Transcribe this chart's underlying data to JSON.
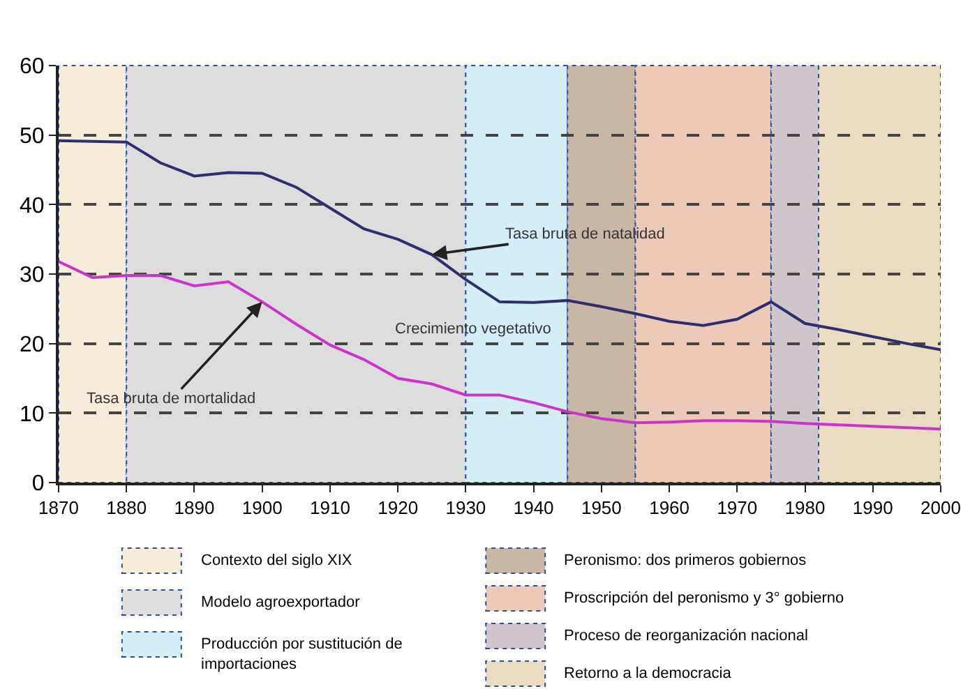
{
  "chart_data": {
    "type": "line",
    "x": [
      1870,
      1875,
      1880,
      1885,
      1890,
      1895,
      1900,
      1905,
      1910,
      1915,
      1920,
      1925,
      1930,
      1935,
      1940,
      1945,
      1950,
      1955,
      1960,
      1965,
      1970,
      1975,
      1980,
      1985,
      1990,
      1995,
      2000
    ],
    "series": [
      {
        "color": "#2e2e6e",
        "values": [
          49.2,
          49.1,
          49.0,
          46.0,
          44.1,
          44.6,
          44.5,
          42.5,
          39.5,
          36.5,
          35.0,
          32.8,
          29.2,
          26.0,
          25.9,
          26.2,
          25.3,
          24.3,
          23.2,
          22.6,
          23.5,
          26.0,
          22.9,
          22.0,
          21.0,
          20.0,
          19.1
        ]
      },
      {
        "color": "#cc33cc",
        "values": [
          31.8,
          29.5,
          29.8,
          29.8,
          28.3,
          28.9,
          26.0,
          22.8,
          19.8,
          17.7,
          15.0,
          14.2,
          12.6,
          12.6,
          11.5,
          10.2,
          9.2,
          8.6,
          8.7,
          8.9,
          8.9,
          8.8,
          8.5,
          8.3,
          8.1,
          7.9,
          7.7
        ]
      }
    ],
    "xlim": [
      1870,
      2000
    ],
    "xticks": [
      1870,
      1880,
      1890,
      1900,
      1910,
      1920,
      1930,
      1940,
      1950,
      1960,
      1970,
      1980,
      1990,
      2000
    ],
    "ylim": [
      0,
      60
    ],
    "yticks": [
      0,
      10,
      20,
      30,
      40,
      50,
      60
    ],
    "grid": "y",
    "legend": "bottom",
    "marker": "none",
    "line_style": "solid",
    "bands": [
      {
        "axis": "x",
        "from": 1870,
        "to": 1880,
        "label": "Contexto del siglo XIX",
        "color": "#f5ecd9"
      },
      {
        "axis": "x",
        "from": 1880,
        "to": 1930,
        "label": "Modelo agroexportador",
        "color": "#dddddd"
      },
      {
        "axis": "x",
        "from": 1930,
        "to": 1945,
        "label": "Producción por sustitución de importaciones",
        "color": "#d3eef6"
      },
      {
        "axis": "x",
        "from": 1945,
        "to": 1955,
        "label": "Peronismo: dos primeros gobiernos",
        "color": "#c9b7a6"
      },
      {
        "axis": "x",
        "from": 1955,
        "to": 1975,
        "label": "Proscripción del peronismo y 3° gobierno",
        "color": "#eccab7"
      },
      {
        "axis": "x",
        "from": 1975,
        "to": 1982,
        "label": "Proceso de reorganización nacional",
        "color": "#cfc6cc"
      },
      {
        "axis": "x",
        "from": 1982,
        "to": 2000,
        "label": "Retorno a la democracia",
        "color": "#eadcc0"
      }
    ],
    "annotations": [
      {
        "text": "Tasa bruta de natalidad",
        "x": 1925,
        "y": 32.8
      },
      {
        "text": "Crecimiento vegetativo",
        "x": 1931,
        "y": 22
      },
      {
        "text": "Tasa bruta de mortalidad",
        "x": 1900,
        "y": 26.0
      }
    ]
  }
}
